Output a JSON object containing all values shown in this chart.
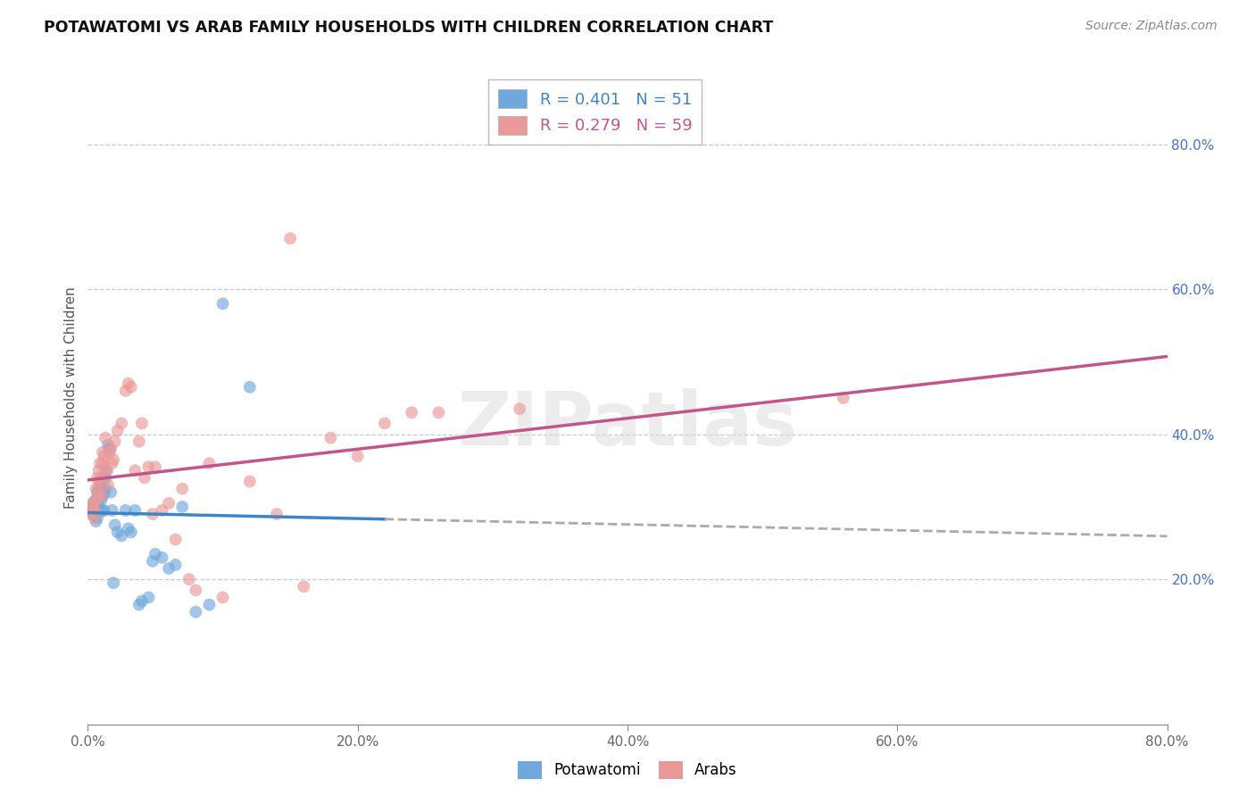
{
  "title": "POTAWATOMI VS ARAB FAMILY HOUSEHOLDS WITH CHILDREN CORRELATION CHART",
  "source": "Source: ZipAtlas.com",
  "ylabel": "Family Households with Children",
  "xlim": [
    0,
    0.8
  ],
  "ylim": [
    0,
    0.9
  ],
  "ytick_values": [
    0.0,
    0.2,
    0.4,
    0.6,
    0.8
  ],
  "xtick_values": [
    0.0,
    0.2,
    0.4,
    0.6,
    0.8
  ],
  "background_color": "#ffffff",
  "grid_color": "#c8c8c8",
  "legend_R1": "R = 0.401",
  "legend_N1": "N = 51",
  "legend_R2": "R = 0.279",
  "legend_N2": "N = 59",
  "potawatomi_color": "#6fa8dc",
  "arab_color": "#ea9999",
  "line1_color": "#3d85c8",
  "line2_color": "#c2558a",
  "dash_color": "#aaaaaa",
  "watermark": "ZIPatlas",
  "potawatomi_x": [
    0.002,
    0.003,
    0.004,
    0.004,
    0.005,
    0.005,
    0.006,
    0.006,
    0.007,
    0.007,
    0.007,
    0.008,
    0.008,
    0.008,
    0.009,
    0.009,
    0.01,
    0.01,
    0.01,
    0.011,
    0.011,
    0.012,
    0.012,
    0.013,
    0.013,
    0.014,
    0.015,
    0.016,
    0.017,
    0.018,
    0.019,
    0.02,
    0.022,
    0.025,
    0.028,
    0.03,
    0.032,
    0.035,
    0.038,
    0.04,
    0.045,
    0.048,
    0.05,
    0.055,
    0.06,
    0.065,
    0.07,
    0.08,
    0.09,
    0.1,
    0.12
  ],
  "potawatomi_y": [
    0.295,
    0.3,
    0.29,
    0.305,
    0.295,
    0.308,
    0.28,
    0.295,
    0.285,
    0.31,
    0.32,
    0.3,
    0.31,
    0.325,
    0.295,
    0.315,
    0.31,
    0.325,
    0.33,
    0.315,
    0.295,
    0.32,
    0.295,
    0.325,
    0.34,
    0.35,
    0.385,
    0.38,
    0.32,
    0.295,
    0.195,
    0.275,
    0.265,
    0.26,
    0.295,
    0.27,
    0.265,
    0.295,
    0.165,
    0.17,
    0.175,
    0.225,
    0.235,
    0.23,
    0.215,
    0.22,
    0.3,
    0.155,
    0.165,
    0.58,
    0.465
  ],
  "arab_x": [
    0.002,
    0.003,
    0.004,
    0.004,
    0.005,
    0.005,
    0.006,
    0.006,
    0.007,
    0.007,
    0.008,
    0.008,
    0.008,
    0.009,
    0.01,
    0.01,
    0.011,
    0.011,
    0.012,
    0.012,
    0.013,
    0.014,
    0.015,
    0.016,
    0.017,
    0.018,
    0.019,
    0.02,
    0.022,
    0.025,
    0.028,
    0.03,
    0.032,
    0.035,
    0.038,
    0.04,
    0.042,
    0.045,
    0.048,
    0.05,
    0.055,
    0.06,
    0.065,
    0.07,
    0.075,
    0.08,
    0.09,
    0.1,
    0.12,
    0.14,
    0.15,
    0.16,
    0.18,
    0.2,
    0.22,
    0.24,
    0.26,
    0.32,
    0.56
  ],
  "arab_y": [
    0.29,
    0.3,
    0.295,
    0.305,
    0.285,
    0.295,
    0.31,
    0.325,
    0.31,
    0.34,
    0.32,
    0.335,
    0.35,
    0.36,
    0.315,
    0.34,
    0.36,
    0.375,
    0.355,
    0.37,
    0.395,
    0.35,
    0.33,
    0.375,
    0.38,
    0.36,
    0.365,
    0.39,
    0.405,
    0.415,
    0.46,
    0.47,
    0.465,
    0.35,
    0.39,
    0.415,
    0.34,
    0.355,
    0.29,
    0.355,
    0.295,
    0.305,
    0.255,
    0.325,
    0.2,
    0.185,
    0.36,
    0.175,
    0.335,
    0.29,
    0.67,
    0.19,
    0.395,
    0.37,
    0.415,
    0.43,
    0.43,
    0.435,
    0.45
  ]
}
